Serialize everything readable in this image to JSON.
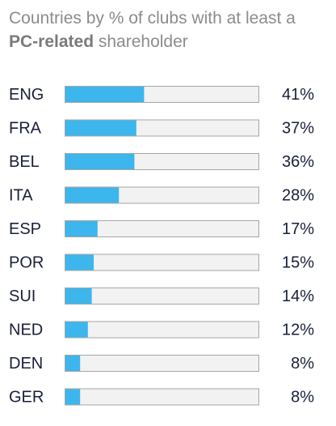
{
  "chart_data": {
    "type": "bar",
    "orientation": "horizontal",
    "title_line1": "Countries by % of clubs with at least a",
    "title_bold": "PC-related",
    "title_rest": " shareholder",
    "xlim": [
      0,
      100
    ],
    "categories": [
      "ENG",
      "FRA",
      "BEL",
      "ITA",
      "ESP",
      "POR",
      "SUI",
      "NED",
      "DEN",
      "GER"
    ],
    "values": [
      41,
      37,
      36,
      28,
      17,
      15,
      14,
      12,
      8,
      8
    ],
    "value_labels": [
      "41%",
      "37%",
      "36%",
      "28%",
      "17%",
      "15%",
      "14%",
      "12%",
      "8%",
      "8%"
    ],
    "bar_color": "#3cb6ec",
    "track_color": "#f2f2f2",
    "track_border": "#a6a6a6",
    "label_color": "#1a1f3a"
  }
}
